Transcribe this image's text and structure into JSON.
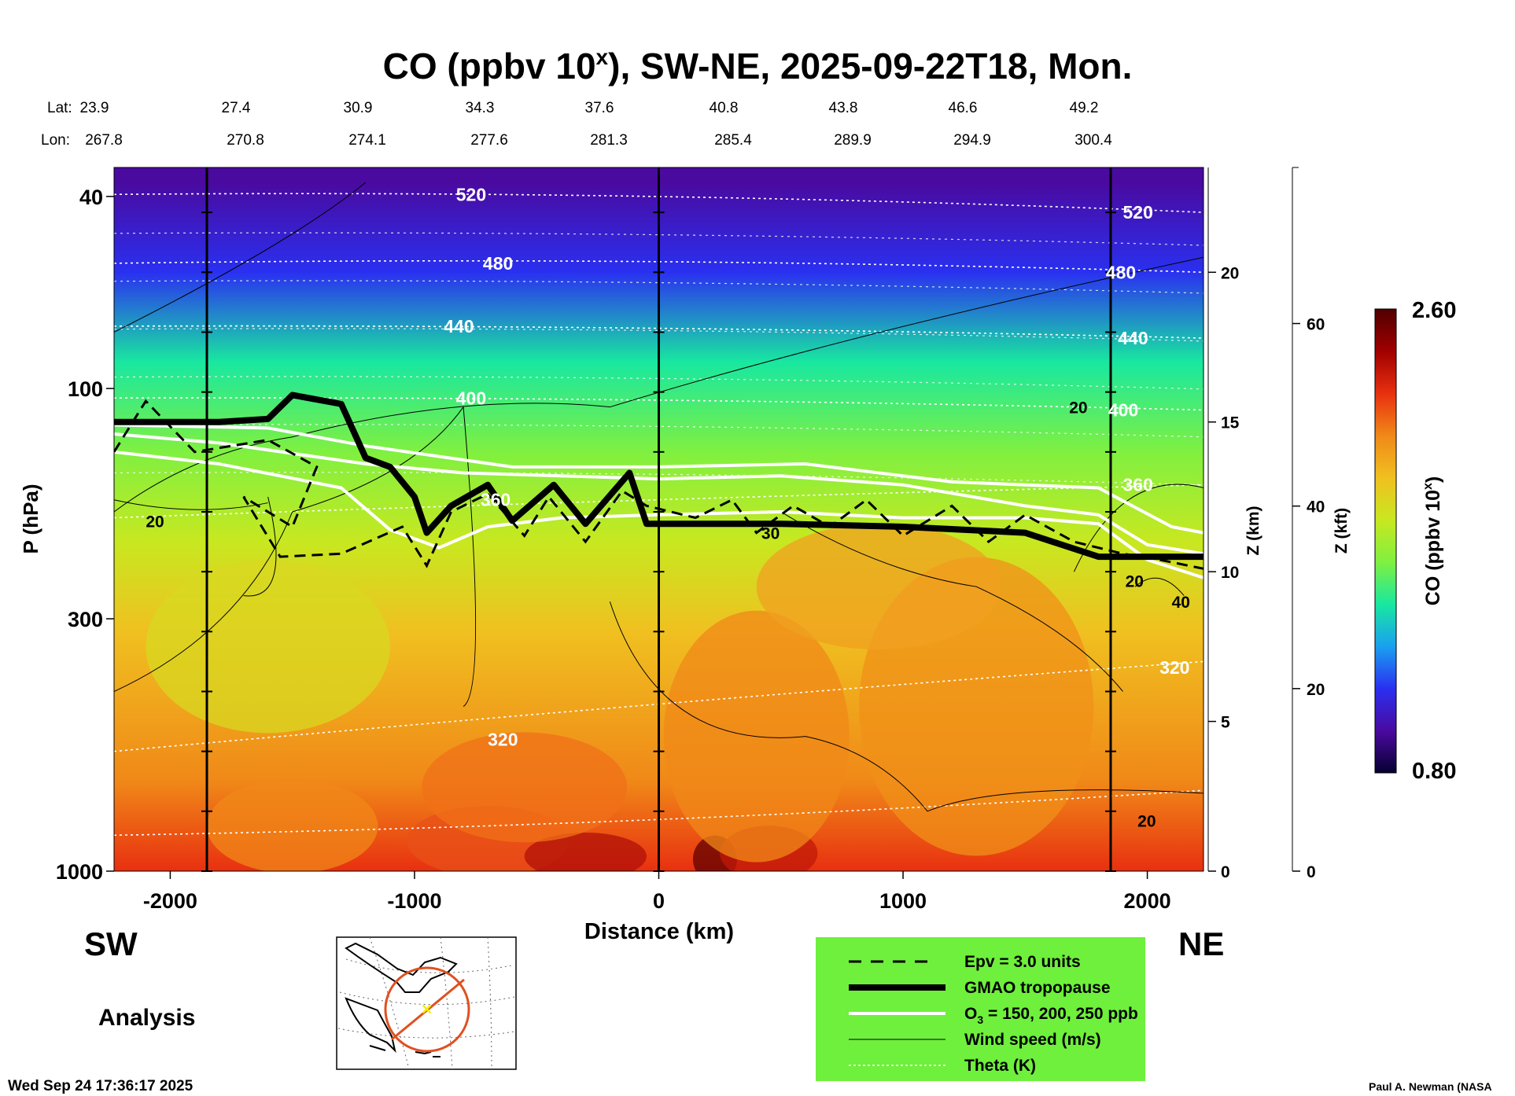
{
  "chart_data": {
    "type": "heatmap",
    "title_main": "CO (ppbv 10",
    "title_sup": "x",
    "title_rest": "), SW-NE, 2025-09-22T18, Mon.",
    "lat_label": "Lat:",
    "lon_label": "Lon:",
    "latitudes": [
      "23.9",
      "27.4",
      "30.9",
      "34.3",
      "37.6",
      "40.8",
      "43.8",
      "46.6",
      "49.2"
    ],
    "longitudes": [
      "267.8",
      "270.8",
      "274.1",
      "277.6",
      "281.3",
      "285.4",
      "289.9",
      "294.9",
      "300.4"
    ],
    "xlabel": "Distance (km)",
    "x_ticks": [
      -2000,
      -1000,
      0,
      1000,
      2000
    ],
    "xlim": [
      -2230,
      2230
    ],
    "ylabel": "P (hPa)",
    "y_ticks": [
      40,
      100,
      300,
      1000
    ],
    "ylim": [
      1000,
      40
    ],
    "z_km_label": "Z (km)",
    "z_km_ticks": [
      0,
      5,
      10,
      15,
      20
    ],
    "z_kft_label": "Z (kft)",
    "z_kft_ticks": [
      0,
      20,
      40,
      60
    ],
    "colorbar_label_main": "CO (ppbv 10",
    "colorbar_label_sup": "x",
    "colorbar_label_rest": ")",
    "colorbar_range": [
      0.8,
      2.6
    ],
    "colorbar_max_label": "2.60",
    "colorbar_min_label": "0.80",
    "colorbar_colors": [
      "#060030",
      "#4a0aa0",
      "#2a30f0",
      "#1aa0f0",
      "#18e8a0",
      "#80f040",
      "#c8e820",
      "#f0c020",
      "#f08818",
      "#e83010",
      "#a00000",
      "#500000"
    ],
    "co_field_by_height_km": [
      {
        "z": 0,
        "co": 2.35
      },
      {
        "z": 3,
        "co": 2.1
      },
      {
        "z": 8,
        "co": 1.95
      },
      {
        "z": 11,
        "co": 1.8
      },
      {
        "z": 14,
        "co": 1.6
      },
      {
        "z": 17,
        "co": 1.4
      },
      {
        "z": 20,
        "co": 1.15
      },
      {
        "z": 23,
        "co": 0.95
      }
    ],
    "theta_labels": [
      "520",
      "480",
      "440",
      "400",
      "360",
      "320",
      "320"
    ],
    "theta_levels": [
      320,
      360,
      400,
      440,
      480,
      520
    ],
    "wind_labels": [
      "20",
      "20",
      "20",
      "30",
      "20",
      "40"
    ],
    "tropopause_km": [
      {
        "x": -2230,
        "z": 15.0
      },
      {
        "x": -1800,
        "z": 15.0
      },
      {
        "x": -1600,
        "z": 15.1
      },
      {
        "x": -1500,
        "z": 15.9
      },
      {
        "x": -1300,
        "z": 15.6
      },
      {
        "x": -1200,
        "z": 13.8
      },
      {
        "x": -1100,
        "z": 13.5
      },
      {
        "x": -1000,
        "z": 12.5
      },
      {
        "x": -950,
        "z": 11.3
      },
      {
        "x": -850,
        "z": 12.2
      },
      {
        "x": -700,
        "z": 12.9
      },
      {
        "x": -600,
        "z": 11.7
      },
      {
        "x": -430,
        "z": 12.9
      },
      {
        "x": -300,
        "z": 11.6
      },
      {
        "x": -120,
        "z": 13.3
      },
      {
        "x": -50,
        "z": 11.6
      },
      {
        "x": 0,
        "z": 11.6
      },
      {
        "x": 500,
        "z": 11.6
      },
      {
        "x": 1000,
        "z": 11.5
      },
      {
        "x": 1500,
        "z": 11.3
      },
      {
        "x": 1800,
        "z": 10.5
      },
      {
        "x": 2230,
        "z": 10.5
      }
    ],
    "legend": [
      "Epv = 3.0 units",
      "GMAO tropopause",
      "O",
      "3",
      " = 150, 200, 250 ppb",
      "Wind speed (m/s)",
      "Theta (K)"
    ],
    "legend_bg": "#6ef03c",
    "left_direction": "SW",
    "right_direction": "NE",
    "analysis_label": "Analysis",
    "timestamp": "Wed Sep 24 17:36:17 2025",
    "credit": "Paul A. Newman (NASA"
  }
}
